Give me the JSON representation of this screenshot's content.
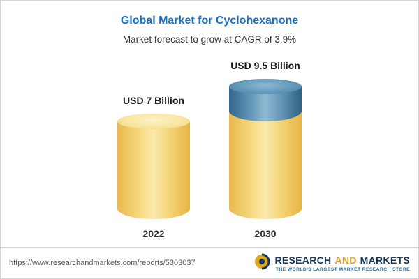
{
  "header": {
    "title": "Global Market for Cyclohexanone",
    "subtitle": "Market forecast to grow at CAGR of 3.9%"
  },
  "chart_data": {
    "type": "bar",
    "title": "Global Market for Cyclohexanone",
    "subtitle": "Market forecast to grow at CAGR of 3.9%",
    "unit": "USD Billion",
    "cagr_percent": 3.9,
    "categories": [
      "2022",
      "2030"
    ],
    "values": [
      7,
      9.5
    ],
    "ylim": [
      0,
      9.5
    ],
    "legend": "none",
    "grid": "off",
    "points": [
      {
        "category": "2022",
        "value": 7,
        "label": "USD 7 Billion",
        "color": "#f2cf70"
      },
      {
        "category": "2030",
        "value": 9.5,
        "label": "USD 9.5 Billion",
        "base_value": 7,
        "growth_value": 2.5,
        "base_color": "#f2cf70",
        "growth_color": "#4a86ad"
      }
    ]
  },
  "footer": {
    "url": "https://www.researchandmarkets.com/reports/5303037",
    "logo": {
      "icon": "globe-icon",
      "words": [
        "RESEARCH",
        "AND",
        "MARKETS"
      ],
      "tagline": "THE WORLD'S LARGEST MARKET RESEARCH STORE"
    }
  },
  "colors": {
    "title_blue": "#1b6fbf",
    "bar_yellow": "#f2cf70",
    "bar_blue": "#4a86ad",
    "logo_navy": "#14375f",
    "logo_gold": "#d9a41f"
  }
}
